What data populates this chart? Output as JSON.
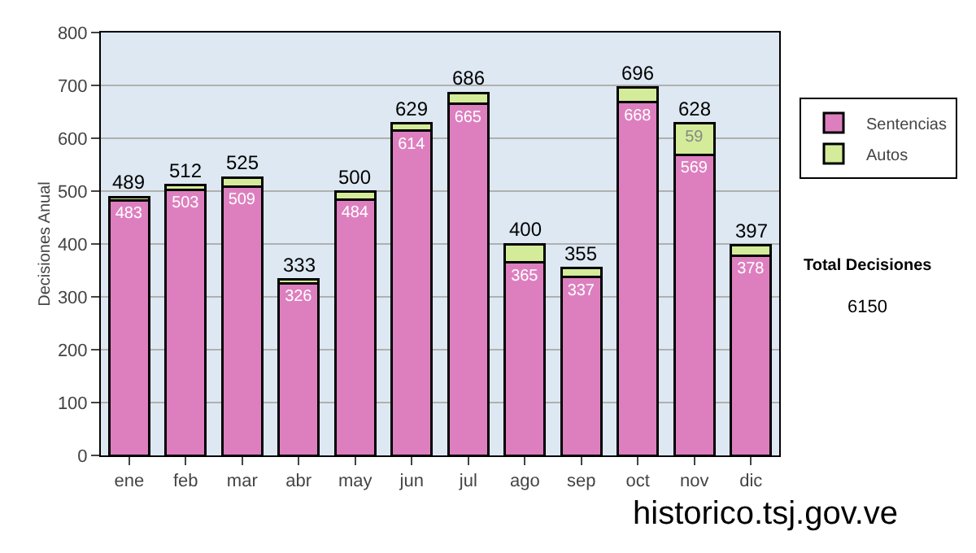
{
  "chart_data": {
    "type": "bar",
    "stacked": true,
    "ylabel": "Decisiones Anual",
    "categories": [
      "ene",
      "feb",
      "mar",
      "abr",
      "may",
      "jun",
      "jul",
      "ago",
      "sep",
      "oct",
      "nov",
      "dic"
    ],
    "series": [
      {
        "name": "Sentencias",
        "color": "#dd7fbf",
        "values": [
          483,
          503,
          509,
          326,
          484,
          614,
          665,
          365,
          337,
          668,
          569,
          378
        ],
        "value_labels": [
          "483",
          "503",
          "509",
          "326",
          "484",
          "614",
          "665",
          "365",
          "337",
          "668",
          "569",
          "378"
        ]
      },
      {
        "name": "Autos",
        "color": "#d4ec9a",
        "values": [
          6,
          9,
          16,
          7,
          16,
          15,
          21,
          35,
          18,
          28,
          59,
          19
        ],
        "value_labels": [
          null,
          null,
          null,
          null,
          null,
          null,
          null,
          null,
          null,
          null,
          "59",
          null
        ]
      }
    ],
    "totals": [
      "489",
      "512",
      "525",
      "333",
      "500",
      "629",
      "686",
      "400",
      "355",
      "696",
      "628",
      "397"
    ],
    "ylim": [
      0,
      800
    ],
    "yticks": [
      0,
      100,
      200,
      300,
      400,
      500,
      600,
      700,
      800
    ],
    "grid": "y",
    "legend": "right",
    "annotations": [
      "Total Decisiones",
      "6150",
      "historico.tsj.gov.ve"
    ]
  }
}
